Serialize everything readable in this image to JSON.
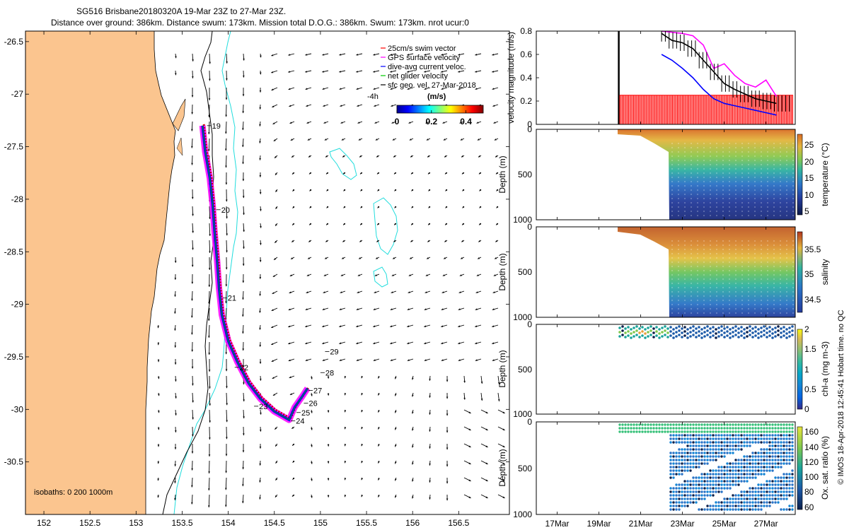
{
  "header": {
    "line1": "SG516 Brisbane20180320A 19-Mar 23Z to 27-Mar 23Z.",
    "line2": "Distance over ground: 386km. Distance swum: 173km. Mission total D.O.G.: 386km. Swum: 173km. nrot ucur:0"
  },
  "credit": "© IMOS 18-Apr-2018 12:45:41 Hobart time. no QC",
  "colors": {
    "land": "#fbc58f",
    "isobath": "#000000",
    "isobath_200": "#22dddd",
    "swim": "#ff0000",
    "gps": "#ff00ff",
    "dive": "#0000ff",
    "glider": "#00cc00",
    "sfc": "#000000"
  },
  "chart_data": [
    {
      "type": "map",
      "xlim": [
        151.8,
        157.05
      ],
      "ylim": [
        -31.0,
        -26.4
      ],
      "xticks": [
        "152",
        "152.5",
        "153",
        "153.5",
        "154",
        "154.5",
        "155",
        "155.5",
        "156",
        "156.5"
      ],
      "yticks": [
        "-26.5",
        "-27",
        "-27.5",
        "-28",
        "-28.5",
        "-29",
        "-29.5",
        "-30",
        "-30.5"
      ],
      "legend": {
        "items": [
          {
            "label": "25cm/s swim vector",
            "color": "#ff0000"
          },
          {
            "label": "GPS surface velocity",
            "color": "#ff00ff"
          },
          {
            "label": "dive-avg current veloc.",
            "color": "#0000ff"
          },
          {
            "label": "net glider velocity",
            "color": "#00cc00"
          },
          {
            "label": "sfc geo. vel. 27-Mar-2018",
            "color": "#000000"
          }
        ],
        "note": "-4h",
        "colorbar_label": "(m/s)",
        "colorbar_ticks": [
          "0",
          "0.2",
          "0.4"
        ],
        "colorbar_range": [
          0,
          0.5
        ]
      },
      "isobath_label": "isobaths: 0   200  1000m",
      "track": [
        [
          153.72,
          -27.3
        ],
        [
          153.75,
          -27.55
        ],
        [
          153.8,
          -27.8
        ],
        [
          153.83,
          -28.05
        ],
        [
          153.85,
          -28.3
        ],
        [
          153.88,
          -28.6
        ],
        [
          153.9,
          -28.85
        ],
        [
          153.93,
          -29.1
        ],
        [
          154.0,
          -29.35
        ],
        [
          154.1,
          -29.55
        ],
        [
          154.22,
          -29.75
        ],
        [
          154.35,
          -29.9
        ],
        [
          154.5,
          -30.02
        ],
        [
          154.66,
          -30.1
        ],
        [
          154.72,
          -29.98
        ],
        [
          154.8,
          -29.88
        ],
        [
          154.86,
          -29.8
        ]
      ],
      "day_labels": [
        {
          "t": "19",
          "lon": 153.77,
          "lat": -27.3
        },
        {
          "t": "20",
          "lon": 153.87,
          "lat": -28.1
        },
        {
          "t": "21",
          "lon": 153.94,
          "lat": -28.94
        },
        {
          "t": "22",
          "lon": 154.07,
          "lat": -29.6
        },
        {
          "t": "23",
          "lon": 154.28,
          "lat": -29.97
        },
        {
          "t": "24",
          "lon": 154.68,
          "lat": -30.11
        },
        {
          "t": "25",
          "lon": 154.74,
          "lat": -30.03
        },
        {
          "t": "26",
          "lon": 154.82,
          "lat": -29.94
        },
        {
          "t": "27",
          "lon": 154.87,
          "lat": -29.82
        },
        {
          "t": "28",
          "lon": 155.0,
          "lat": -29.65
        },
        {
          "t": "29",
          "lon": 155.05,
          "lat": -29.45
        }
      ]
    },
    {
      "type": "line",
      "ylabel": "velocity magnitude (m/s)",
      "ylim": [
        0,
        0.8
      ],
      "yticks": [
        "0",
        "0.2",
        "0.4",
        "0.6",
        "0.8"
      ],
      "x": [
        20.0,
        20.5,
        21.0,
        21.5,
        22.0,
        22.5,
        23.0,
        23.5,
        24.0,
        24.5,
        25.0,
        25.5,
        26.0,
        26.5,
        27.0,
        27.5
      ],
      "series": [
        {
          "color": "#ff0000",
          "values": [
            0.25,
            0.25,
            0.25,
            0.25,
            0.25,
            0.25,
            0.25,
            0.25,
            0.25,
            0.25,
            0.25,
            0.25,
            0.25,
            0.25,
            0.25,
            0.25
          ]
        },
        {
          "color": "#ff00ff",
          "values": [
            null,
            null,
            null,
            null,
            0.8,
            0.79,
            0.78,
            0.76,
            0.68,
            0.48,
            0.52,
            0.42,
            0.35,
            0.32,
            0.38,
            0.24
          ]
        },
        {
          "color": "#000000",
          "values": [
            null,
            null,
            null,
            null,
            0.78,
            0.72,
            0.7,
            0.65,
            0.55,
            0.45,
            0.35,
            0.3,
            0.26,
            0.22,
            0.2,
            0.18
          ]
        },
        {
          "color": "#0000ff",
          "values": [
            null,
            null,
            null,
            null,
            0.6,
            0.55,
            0.48,
            0.4,
            0.3,
            0.22,
            0.18,
            0.16,
            0.14,
            0.12,
            0.1,
            0.08
          ]
        }
      ]
    },
    {
      "type": "heatmap",
      "ylabel": "Depth (m)",
      "ylim": [
        1000,
        0
      ],
      "yticks": [
        "0",
        "500",
        "1000"
      ],
      "clabel": "temperature (°C)",
      "cticks": [
        "5",
        "10",
        "15",
        "20",
        "25"
      ],
      "crange": [
        4,
        28
      ]
    },
    {
      "type": "heatmap",
      "ylabel": "Depth (m)",
      "ylim": [
        1000,
        0
      ],
      "yticks": [
        "0",
        "500",
        "1000"
      ],
      "clabel": "salinity",
      "cticks": [
        "34.5",
        "35",
        "35.5"
      ],
      "crange": [
        34.3,
        35.9
      ]
    },
    {
      "type": "heatmap",
      "ylabel": "Depth (m)",
      "ylim": [
        1000,
        0
      ],
      "yticks": [
        "0",
        "500",
        "1000"
      ],
      "clabel": "chl-a (mg m-3)",
      "cticks": [
        "0",
        "0.5",
        "1",
        "1.5",
        "2"
      ],
      "crange": [
        0,
        2
      ]
    },
    {
      "type": "heatmap",
      "ylabel": "Depth (m)",
      "ylim": [
        1000,
        0
      ],
      "yticks": [
        "0",
        "500",
        "1000"
      ],
      "clabel": "Ox. sat. ratio (%)",
      "cticks": [
        "60",
        "80",
        "100",
        "120",
        "140",
        "160"
      ],
      "crange": [
        60,
        170
      ]
    },
    {
      "type": "time_axis",
      "xlim": [
        16.0,
        28.4
      ],
      "xticks": [
        "17Mar",
        "19Mar",
        "21Mar",
        "23Mar",
        "25Mar",
        "27Mar"
      ],
      "xtick_values": [
        17,
        19,
        21,
        23,
        25,
        27
      ]
    }
  ]
}
